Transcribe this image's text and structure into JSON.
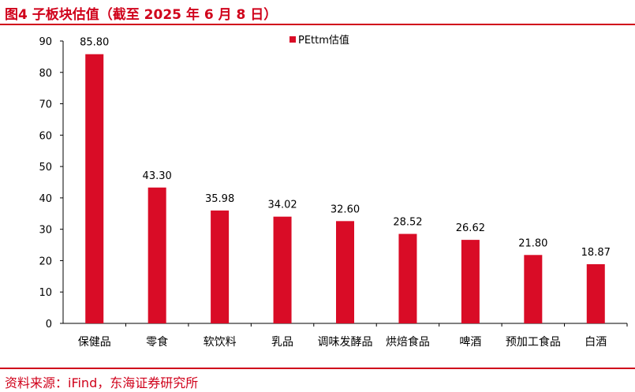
{
  "header": {
    "figure_title": "图4  子板块估值（截至 2025 年 6 月 8 日）"
  },
  "footer": {
    "source": "资料来源：iFind，东海证券研究所"
  },
  "colors": {
    "accent": "#d0021b",
    "bar": "#d90c26"
  },
  "chart_data": {
    "type": "bar",
    "title": "",
    "xlabel": "",
    "ylabel": "",
    "ylim": [
      0,
      90
    ],
    "yticks": [
      0,
      10,
      20,
      30,
      40,
      50,
      60,
      70,
      80,
      90
    ],
    "categories": [
      "保健品",
      "零食",
      "软饮料",
      "乳品",
      "调味发酵品",
      "烘焙食品",
      "啤酒",
      "预加工食品",
      "白酒"
    ],
    "series": [
      {
        "name": "PEttm估值",
        "values": [
          85.8,
          43.3,
          35.98,
          34.02,
          32.6,
          28.52,
          26.62,
          21.8,
          18.87
        ]
      }
    ],
    "data_labels": [
      "85.80",
      "43.30",
      "35.98",
      "34.02",
      "32.60",
      "28.52",
      "26.62",
      "21.80",
      "18.87"
    ],
    "grid": false,
    "legend_position": "top-center"
  }
}
